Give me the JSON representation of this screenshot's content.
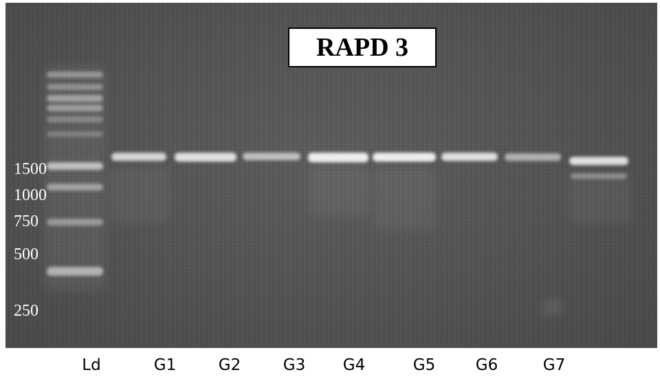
{
  "title": "RAPD 3",
  "size_markers": [
    "1500",
    "1000",
    "750",
    "500",
    "250"
  ],
  "lanes": [
    "Ld",
    "G1",
    "G2",
    "G3",
    "G4",
    "G5",
    "G6",
    "G7"
  ]
}
